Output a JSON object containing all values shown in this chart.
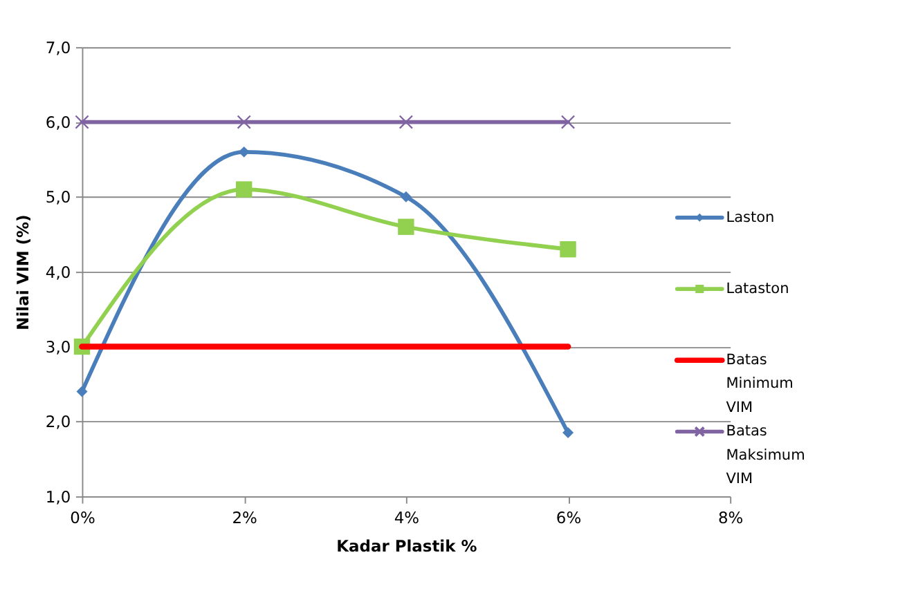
{
  "chart_data": {
    "type": "line",
    "xlabel": "Kadar Plastik %",
    "ylabel": "Nilai  VIM  (%)",
    "x": [
      0,
      2,
      4,
      6
    ],
    "xlim": [
      0,
      8
    ],
    "xticks": [
      {
        "value": 0,
        "label": "0%"
      },
      {
        "value": 2,
        "label": "2%"
      },
      {
        "value": 4,
        "label": "4%"
      },
      {
        "value": 6,
        "label": "6%"
      },
      {
        "value": 8,
        "label": "8%"
      }
    ],
    "ylim": [
      1,
      7
    ],
    "yticks": [
      {
        "value": 1,
        "label": "1,0"
      },
      {
        "value": 2,
        "label": "2,0"
      },
      {
        "value": 3,
        "label": "3,0"
      },
      {
        "value": 4,
        "label": "4,0"
      },
      {
        "value": 5,
        "label": "5,0"
      },
      {
        "value": 6,
        "label": "6,0"
      },
      {
        "value": 7,
        "label": "7,0"
      }
    ],
    "grid": "y",
    "legend": "right",
    "series": [
      {
        "name": "Laston",
        "color": "#4a7ebb",
        "marker": "diamond",
        "values": [
          2.4,
          5.6,
          5.0,
          1.85
        ]
      },
      {
        "name": "Lataston",
        "color": "#92d050",
        "marker": "square",
        "values": [
          3.0,
          5.1,
          4.6,
          4.3
        ]
      },
      {
        "name": "Batas Minimum VIM",
        "color": "#ff0000",
        "marker": "none",
        "values": [
          3.0,
          3.0,
          3.0,
          3.0
        ]
      },
      {
        "name": "Batas Maksimum VIM",
        "color": "#8064a2",
        "marker": "cross",
        "values": [
          6.0,
          6.0,
          6.0,
          6.0
        ]
      }
    ]
  }
}
